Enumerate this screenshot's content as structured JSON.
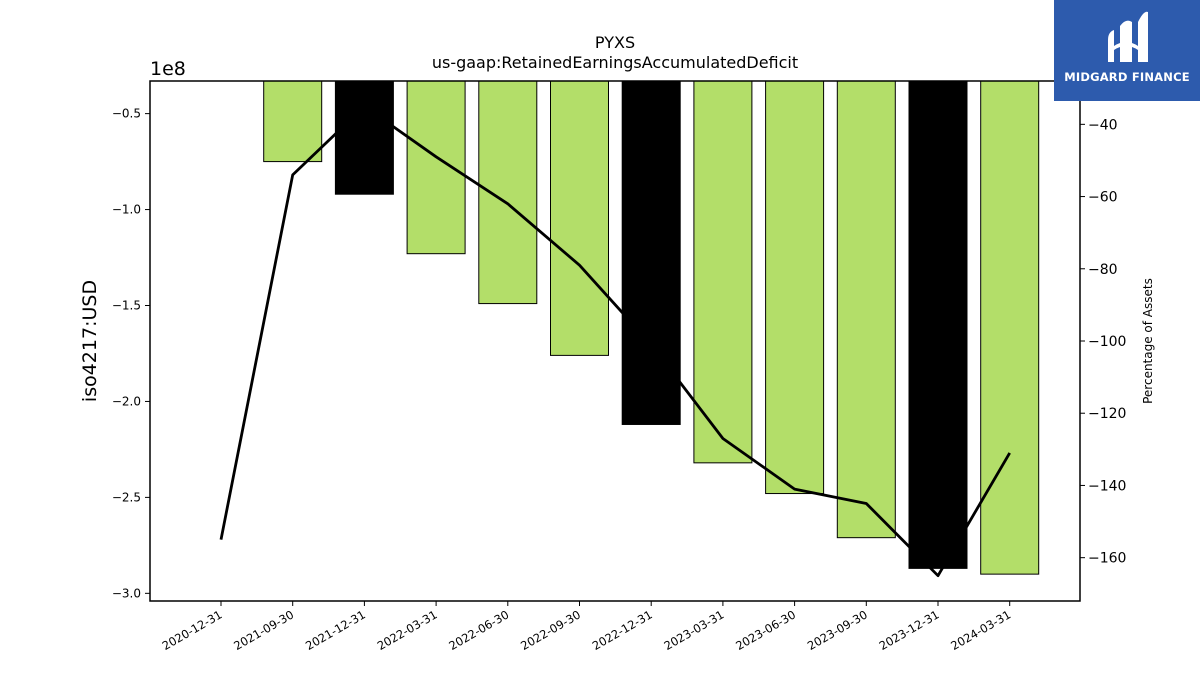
{
  "brand": {
    "name": "MIDGARD FINANCE",
    "bg_color": "#2d5bad"
  },
  "chart_data": {
    "type": "bar",
    "title": "PYXS",
    "subtitle": "us-gaap:RetainedEarningsAccumulatedDeficit",
    "ylabel": "iso4217:USD",
    "y_offset_label": "1e8",
    "y2label": "Percentage of Assets",
    "categories": [
      "2020-12-31",
      "2021-09-30",
      "2021-12-31",
      "2022-03-31",
      "2022-06-30",
      "2022-09-30",
      "2022-12-31",
      "2023-03-31",
      "2023-06-30",
      "2023-09-30",
      "2023-12-31",
      "2024-03-31"
    ],
    "series": [
      {
        "type": "bar",
        "values": [
          null,
          -75000000,
          -92000000,
          -123000000,
          -149000000,
          -176000000,
          -212000000,
          -232000000,
          -248000000,
          -271000000,
          -287000000,
          -290000000
        ],
        "colors": [
          "#b3de69",
          "#b3de69",
          "#000000",
          "#b3de69",
          "#b3de69",
          "#b3de69",
          "#000000",
          "#b3de69",
          "#b3de69",
          "#b3de69",
          "#000000",
          "#b3de69"
        ]
      },
      {
        "type": "line",
        "axis": "right",
        "values": [
          -155,
          -54,
          -35,
          -49,
          -62,
          -79,
          -101,
          -127,
          -141,
          -145,
          -165,
          -131
        ],
        "color": "#000000"
      }
    ],
    "ylim": [
      -304000000,
      -33000000
    ],
    "y2lim": [
      -172,
      -28
    ],
    "yticks": [
      -50000000,
      -100000000,
      -150000000,
      -200000000,
      -250000000,
      -300000000
    ],
    "ytick_labels": [
      "−0.5",
      "−1.0",
      "−1.5",
      "−2.0",
      "−2.5",
      "−3.0"
    ],
    "y2ticks": [
      -40,
      -60,
      -80,
      -100,
      -120,
      -140,
      -160
    ],
    "y2tick_labels": [
      "−40",
      "−60",
      "−80",
      "−100",
      "−120",
      "−140",
      "−160"
    ],
    "grid": false
  }
}
